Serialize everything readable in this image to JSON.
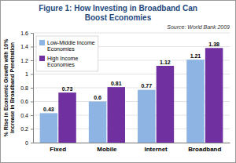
{
  "chart_data": {
    "type": "bar",
    "title": "Figure 1: How Investing in Broadband Can Boost Economies",
    "subtitle": "Source: World Bank 2009",
    "y_label": "% Rise in Economic Growth with 10% Increase in Broadband Penetration",
    "categories": [
      "Fixed",
      "Mobile",
      "Internet",
      "Broadband"
    ],
    "series": [
      {
        "name": "Low-Middle Income Economies",
        "color": "#8EB4E3",
        "values": [
          0.43,
          0.6,
          0.77,
          1.21
        ]
      },
      {
        "name": "High Income Economies",
        "color": "#7030A0",
        "values": [
          0.73,
          0.81,
          1.12,
          1.38
        ]
      }
    ],
    "ylim": [
      0,
      1.6
    ],
    "yticks": [
      0,
      0.2,
      0.4,
      0.6,
      0.8,
      1,
      1.2,
      1.4,
      1.6
    ],
    "grid": true,
    "legend": "top-left",
    "data_labels": true
  }
}
